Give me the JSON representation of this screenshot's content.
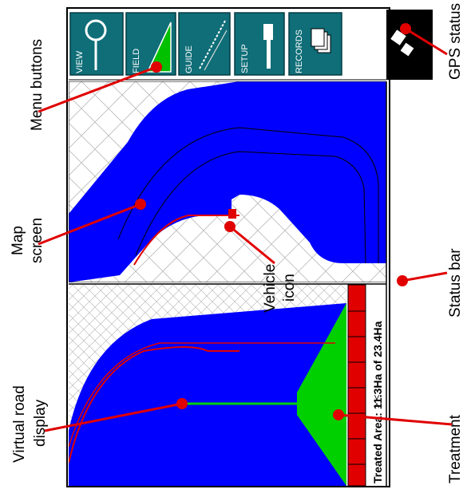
{
  "menu": {
    "buttons": [
      {
        "label": "VIEW",
        "icon": "magnifier-icon"
      },
      {
        "label": "FIELD",
        "icon": "field-icon"
      },
      {
        "label": "GUIDE",
        "icon": "guide-icon"
      },
      {
        "label": "SETUP",
        "icon": "wrench-icon"
      },
      {
        "label": "RECORDS",
        "icon": "records-icon"
      }
    ]
  },
  "status_bar": {
    "text": "Treated Area: 11.3Ha of 23.4Ha",
    "arrow_glyph": "> <"
  },
  "callouts": {
    "menu_buttons": "Menu buttons",
    "gps_status": "GPS status",
    "map_screen_1": "Map",
    "map_screen_2": "screen",
    "vehicle_icon_1": "Vehicle",
    "vehicle_icon_2": "icon",
    "status_bar": "Status bar",
    "virtual_road_1": "Virtual road",
    "virtual_road_2": "display",
    "treatment": "Treatment"
  },
  "colors": {
    "button_teal": "#0f6e78",
    "coverage_blue": "#0000ff",
    "guidance_red": "#e00000",
    "field_green": "#00d000",
    "gps_black": "#000000",
    "grid_gray": "#b9b9b9"
  }
}
